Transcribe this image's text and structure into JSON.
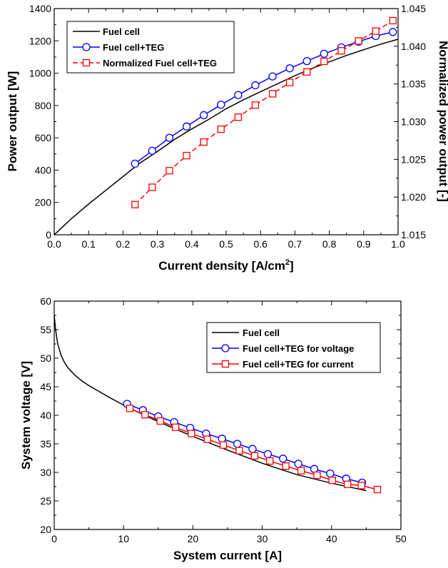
{
  "chart_data": [
    {
      "type": "line",
      "xlabel": "Current density [A/cm",
      "xlabel_sup": "2",
      "xlabel_end": "]",
      "ylabel": "Power output [W]",
      "y2label": "Normalized power output [-]",
      "xlim": [
        0,
        1.0
      ],
      "ylim": [
        0,
        1400
      ],
      "y2lim": [
        1.015,
        1.045
      ],
      "xticks": [
        "0.0",
        "0.1",
        "0.2",
        "0.3",
        "0.4",
        "0.5",
        "0.6",
        "0.7",
        "0.8",
        "0.9",
        "1.0"
      ],
      "yticks": [
        "0",
        "200",
        "400",
        "600",
        "800",
        "1000",
        "1200",
        "1400"
      ],
      "y2ticks": [
        "1.015",
        "1.020",
        "1.025",
        "1.030",
        "1.035",
        "1.040",
        "1.045"
      ],
      "legend_position": "top-left",
      "series": [
        {
          "name": "Fuel cell",
          "axis": "left",
          "color": "#000000",
          "marker": "none",
          "dash": "solid",
          "x": [
            0,
            0.02,
            0.05,
            0.1,
            0.15,
            0.2,
            0.25,
            0.3,
            0.35,
            0.4,
            0.45,
            0.5,
            0.55,
            0.6,
            0.65,
            0.7,
            0.75,
            0.8,
            0.85,
            0.9,
            0.95,
            1.0
          ],
          "y": [
            0,
            40,
            100,
            190,
            275,
            360,
            445,
            515,
            590,
            655,
            715,
            780,
            835,
            885,
            935,
            985,
            1030,
            1070,
            1110,
            1145,
            1180,
            1210
          ]
        },
        {
          "name": "Fuel cell+TEG",
          "axis": "left",
          "color": "#0000ff",
          "marker": "circle",
          "dash": "solid",
          "x": [
            0.235,
            0.285,
            0.335,
            0.385,
            0.435,
            0.485,
            0.535,
            0.585,
            0.635,
            0.685,
            0.735,
            0.785,
            0.835,
            0.885,
            0.935,
            0.985
          ],
          "y": [
            440,
            520,
            600,
            670,
            740,
            805,
            865,
            925,
            980,
            1030,
            1075,
            1120,
            1160,
            1195,
            1230,
            1255
          ]
        },
        {
          "name": "Normalized Fuel cell+TEG",
          "axis": "right",
          "color": "#ff0000",
          "marker": "square",
          "dash": "dashed",
          "x": [
            0.235,
            0.285,
            0.335,
            0.385,
            0.435,
            0.485,
            0.535,
            0.585,
            0.635,
            0.685,
            0.735,
            0.785,
            0.835,
            0.885,
            0.935,
            0.985
          ],
          "y": [
            1.019,
            1.0213,
            1.0235,
            1.0255,
            1.0273,
            1.029,
            1.0306,
            1.0322,
            1.0337,
            1.0352,
            1.0366,
            1.038,
            1.0394,
            1.0407,
            1.042,
            1.0434
          ]
        }
      ]
    },
    {
      "type": "line",
      "xlabel": "System current [A]",
      "ylabel": "System voltage [V]",
      "xlim": [
        0,
        50
      ],
      "ylim": [
        20,
        60
      ],
      "xticks": [
        "0",
        "10",
        "20",
        "30",
        "40",
        "50"
      ],
      "yticks": [
        "20",
        "25",
        "30",
        "35",
        "40",
        "45",
        "50",
        "55",
        "60"
      ],
      "legend_position": "top-right",
      "series": [
        {
          "name": "Fuel cell",
          "color": "#000000",
          "marker": "none",
          "dash": "solid",
          "x": [
            0,
            0.2,
            0.5,
            1,
            1.5,
            2,
            3,
            4,
            5,
            6,
            8,
            10,
            12,
            15,
            20,
            25,
            30,
            35,
            40,
            45
          ],
          "y": [
            57.5,
            55,
            52.5,
            50.5,
            49.2,
            48.3,
            47,
            46,
            45.2,
            44.5,
            43.1,
            41.8,
            40.6,
            38.9,
            36.3,
            33.9,
            31.6,
            29.6,
            28.1,
            26.8
          ]
        },
        {
          "name": "Fuel cell+TEG for voltage",
          "color": "#0000ff",
          "marker": "circle",
          "dash": "solid",
          "x": [
            10.5,
            12.8,
            15.0,
            17.3,
            19.6,
            21.9,
            24.2,
            26.4,
            28.6,
            30.8,
            33.0,
            35.2,
            37.5,
            39.8,
            42.1,
            44.4
          ],
          "y": [
            42.0,
            40.9,
            39.8,
            38.8,
            37.8,
            36.8,
            35.9,
            35.0,
            34.1,
            33.2,
            32.4,
            31.5,
            30.6,
            29.8,
            28.9,
            28.2
          ]
        },
        {
          "name": "Fuel cell+TEG for current",
          "color": "#ff0000",
          "marker": "square",
          "dash": "solid",
          "x": [
            10.9,
            13.1,
            15.3,
            17.5,
            19.8,
            22.1,
            24.4,
            26.7,
            28.9,
            31.1,
            33.4,
            35.6,
            37.9,
            40.1,
            42.3,
            44.3,
            46.6
          ],
          "y": [
            41.2,
            40.1,
            39.0,
            37.9,
            36.8,
            35.8,
            34.8,
            33.8,
            32.9,
            32.0,
            31.1,
            30.3,
            29.5,
            28.6,
            27.9,
            27.7,
            27.0
          ]
        }
      ]
    }
  ]
}
